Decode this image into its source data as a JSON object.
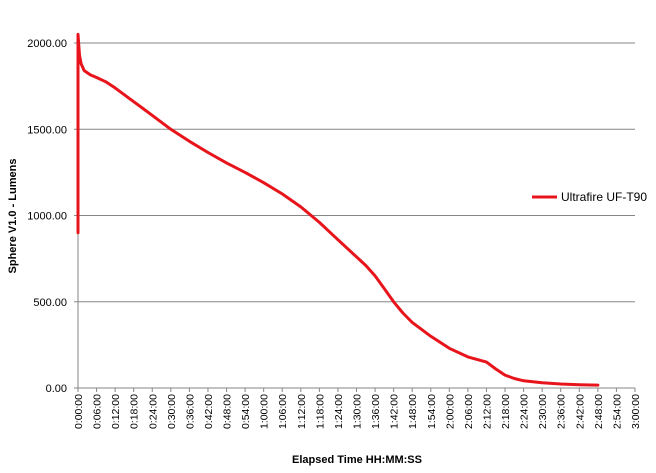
{
  "chart_data": {
    "type": "line",
    "title": "",
    "xlabel": "Elapsed Time HH:MM:SS",
    "ylabel": "Sphere V1.0 - Lumens",
    "xlim_minutes": [
      0,
      180
    ],
    "ylim": [
      0,
      2000
    ],
    "y_ticks": [
      0,
      500,
      1000,
      1500,
      2000
    ],
    "y_tick_labels": [
      "0.00",
      "500.00",
      "1000.00",
      "1500.00",
      "2000.00"
    ],
    "x_tick_minutes": [
      0,
      6,
      12,
      18,
      24,
      30,
      36,
      42,
      48,
      54,
      60,
      66,
      72,
      78,
      84,
      90,
      96,
      102,
      108,
      114,
      120,
      126,
      132,
      138,
      144,
      150,
      156,
      162,
      168,
      174,
      180
    ],
    "x_tick_labels": [
      "0:00:00",
      "0:06:00",
      "0:12:00",
      "0:18:00",
      "0:24:00",
      "0:30:00",
      "0:36:00",
      "0:42:00",
      "0:48:00",
      "0:54:00",
      "1:00:00",
      "1:06:00",
      "1:12:00",
      "1:18:00",
      "1:24:00",
      "1:30:00",
      "1:36:00",
      "1:42:00",
      "1:48:00",
      "1:54:00",
      "2:00:00",
      "2:06:00",
      "2:12:00",
      "2:18:00",
      "2:24:00",
      "2:30:00",
      "2:36:00",
      "2:42:00",
      "2:48:00",
      "2:54:00",
      "3:00:00"
    ],
    "grid": "horizontal",
    "legend_position": "right",
    "series": [
      {
        "name": "Ultrafire UF-T90",
        "color": "#e8141b",
        "x_minutes": [
          0,
          0,
          0.2,
          0.5,
          1,
          2,
          4,
          6,
          9,
          12,
          15,
          18,
          21,
          24,
          30,
          36,
          42,
          48,
          54,
          60,
          66,
          72,
          78,
          84,
          90,
          93,
          96,
          99,
          102,
          105,
          108,
          114,
          120,
          126,
          132,
          135,
          138,
          141,
          144,
          150,
          156,
          162,
          168
        ],
        "values": [
          900,
          2050,
          2000,
          1930,
          1880,
          1840,
          1815,
          1800,
          1775,
          1740,
          1700,
          1660,
          1620,
          1580,
          1500,
          1430,
          1365,
          1305,
          1250,
          1190,
          1125,
          1050,
          960,
          860,
          760,
          710,
          650,
          575,
          500,
          435,
          380,
          300,
          230,
          180,
          150,
          110,
          75,
          55,
          42,
          30,
          23,
          19,
          17
        ]
      }
    ]
  }
}
